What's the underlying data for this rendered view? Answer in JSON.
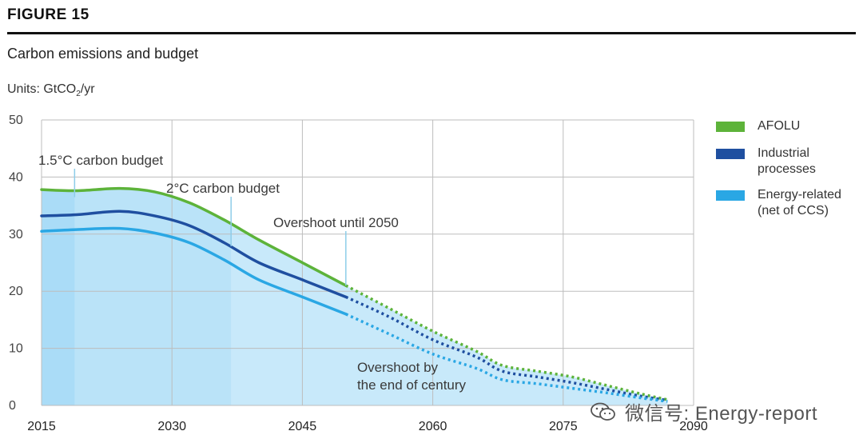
{
  "figure_label": "FIGURE 15",
  "title": "Carbon emissions and budget",
  "units_label": "Units: GtCO",
  "units_sub": "2",
  "units_suffix": "/yr",
  "colors": {
    "afolu": "#5db33a",
    "industrial": "#1f4fa0",
    "energy": "#2aa7e4",
    "fill": "#c8e9fa",
    "fill_dark": "#a9dcf6",
    "grid": "#bdbdbd",
    "text": "#333333"
  },
  "legend": [
    {
      "label": "AFOLU",
      "color": "#5db33a"
    },
    {
      "label": "Industrial\nprocesses",
      "color": "#1f4fa0"
    },
    {
      "label": "Energy-related\n(net of CCS)",
      "color": "#2aa7e4"
    }
  ],
  "watermark": "微信号: Energy-report",
  "chart_data": {
    "type": "area",
    "title": "Carbon emissions and budget",
    "ylabel": "Units: GtCO2/yr",
    "xlim": [
      2015,
      2090
    ],
    "ylim": [
      0,
      50
    ],
    "xticks": [
      2015,
      2030,
      2045,
      2060,
      2075,
      2090
    ],
    "yticks": [
      0,
      10,
      20,
      30,
      40,
      50
    ],
    "grid": true,
    "projection_start": 2050,
    "series": [
      {
        "name": "AFOLU",
        "x": [
          2015,
          2019,
          2024,
          2028,
          2032,
          2036,
          2040,
          2045,
          2050,
          2055,
          2060,
          2065,
          2068,
          2072,
          2076,
          2080,
          2084,
          2087
        ],
        "values": [
          37.8,
          37.6,
          38,
          37.4,
          35.5,
          32.5,
          29,
          25,
          21,
          17,
          13,
          9.5,
          7,
          6,
          5,
          3.5,
          2,
          1
        ]
      },
      {
        "name": "Industrial processes",
        "x": [
          2015,
          2019,
          2024,
          2028,
          2032,
          2036,
          2040,
          2045,
          2050,
          2055,
          2060,
          2065,
          2068,
          2072,
          2076,
          2080,
          2084,
          2087
        ],
        "values": [
          33.2,
          33.4,
          34,
          33.2,
          31.5,
          28.5,
          25,
          22,
          19,
          15.5,
          11.5,
          8.5,
          6,
          5,
          4,
          2.8,
          1.6,
          0.9
        ]
      },
      {
        "name": "Energy-related (net of CCS)",
        "x": [
          2015,
          2019,
          2024,
          2028,
          2032,
          2036,
          2040,
          2045,
          2050,
          2055,
          2060,
          2065,
          2068,
          2072,
          2076,
          2080,
          2084,
          2087
        ],
        "values": [
          30.5,
          30.8,
          31,
          30.2,
          28.5,
          25.5,
          22,
          19,
          16,
          12.5,
          9,
          6.5,
          4.5,
          3.8,
          3,
          2.2,
          1.3,
          0.7
        ]
      }
    ],
    "budget_markers": [
      {
        "label": "1.5°C carbon budget",
        "year": 2018.8
      },
      {
        "label": "2°C carbon budget",
        "year": 2036.8
      },
      {
        "label": "Overshoot until 2050",
        "year": 2050
      }
    ],
    "annotations": [
      {
        "label": "Overshoot by",
        "year": 2051.3,
        "y": 5.9
      },
      {
        "label": "the end of century",
        "year": 2051.3,
        "y": 2.8
      }
    ]
  }
}
